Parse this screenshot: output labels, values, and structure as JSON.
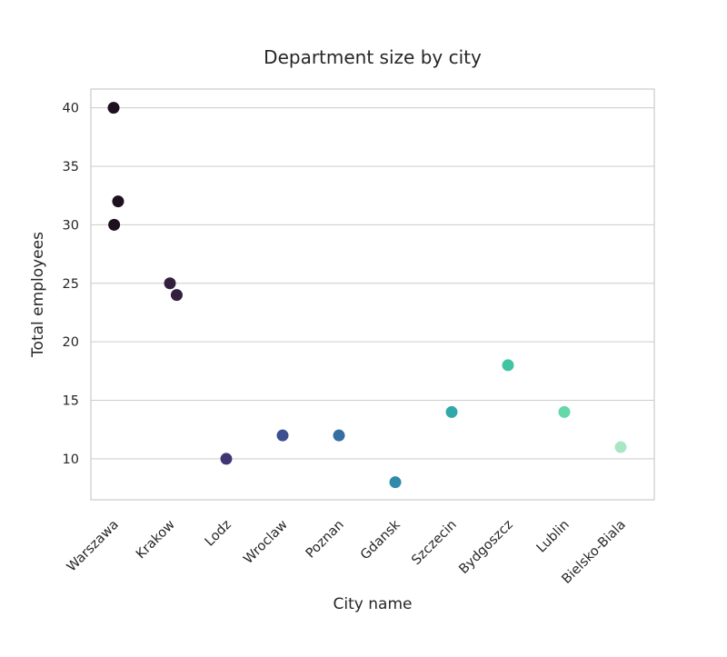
{
  "chart_data": {
    "type": "scatter",
    "title": "Department size by city",
    "xlabel": "City name",
    "ylabel": "Total employees",
    "categories": [
      "Warszawa",
      "Krakow",
      "Lodz",
      "Wroclaw",
      "Poznan",
      "Gdansk",
      "Szczecin",
      "Bydgoszcz",
      "Lublin",
      "Bielsko-Biala"
    ],
    "y_ticks": [
      10,
      15,
      20,
      25,
      30,
      35,
      40
    ],
    "ylim": [
      6.5,
      41.6
    ],
    "grid": true,
    "points": [
      {
        "city": "Warszawa",
        "value": 40,
        "jitter": 0.0
      },
      {
        "city": "Warszawa",
        "value": 32,
        "jitter": 0.08
      },
      {
        "city": "Warszawa",
        "value": 30,
        "jitter": 0.01
      },
      {
        "city": "Krakow",
        "value": 25,
        "jitter": 0.0
      },
      {
        "city": "Krakow",
        "value": 24,
        "jitter": 0.12
      },
      {
        "city": "Lodz",
        "value": 10,
        "jitter": 0.0
      },
      {
        "city": "Wroclaw",
        "value": 12,
        "jitter": 0.0
      },
      {
        "city": "Poznan",
        "value": 12,
        "jitter": 0.0
      },
      {
        "city": "Gdansk",
        "value": 8,
        "jitter": 0.0
      },
      {
        "city": "Szczecin",
        "value": 14,
        "jitter": 0.0
      },
      {
        "city": "Bydgoszcz",
        "value": 18,
        "jitter": 0.0
      },
      {
        "city": "Lublin",
        "value": 14,
        "jitter": 0.0
      },
      {
        "city": "Bielsko-Biala",
        "value": 11,
        "jitter": 0.0
      }
    ],
    "colors": [
      "#1f1020",
      "#33203f",
      "#3f3573",
      "#3b4f91",
      "#356ea0",
      "#2f8aab",
      "#33a8a8",
      "#40c4a2",
      "#64d8a8",
      "#a9e7c4"
    ]
  }
}
